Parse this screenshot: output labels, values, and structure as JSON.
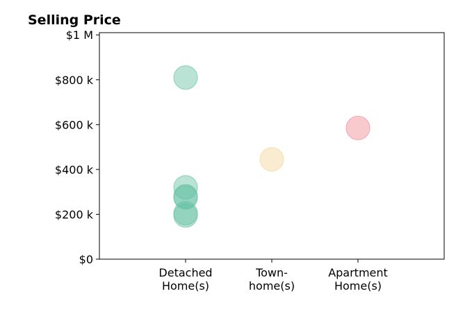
{
  "chart_data": {
    "type": "scatter",
    "title": "Selling Price",
    "xlabel": "",
    "ylabel": "",
    "categories": [
      [
        "Detached",
        "Home(s)"
      ],
      [
        "Town-",
        "home(s)"
      ],
      [
        "Apartment",
        "Home(s)"
      ]
    ],
    "ylim": [
      0,
      1010000
    ],
    "yticks": [
      0,
      200000,
      400000,
      600000,
      800000,
      1000000
    ],
    "ytick_labels": [
      "$0",
      "$200 k",
      "$400 k",
      "$600 k",
      "$800 k",
      "$1 M"
    ],
    "grid": false,
    "legend": "none",
    "category_colors": [
      "#66c2a5",
      "#f5d59a",
      "#f08a93"
    ],
    "points": [
      {
        "category": 0,
        "value": 810000
      },
      {
        "category": 0,
        "value": 320000
      },
      {
        "category": 0,
        "value": 280000
      },
      {
        "category": 0,
        "value": 275000
      },
      {
        "category": 0,
        "value": 205000
      },
      {
        "category": 0,
        "value": 195000
      },
      {
        "category": 1,
        "value": 445000
      },
      {
        "category": 2,
        "value": 585000
      }
    ]
  }
}
